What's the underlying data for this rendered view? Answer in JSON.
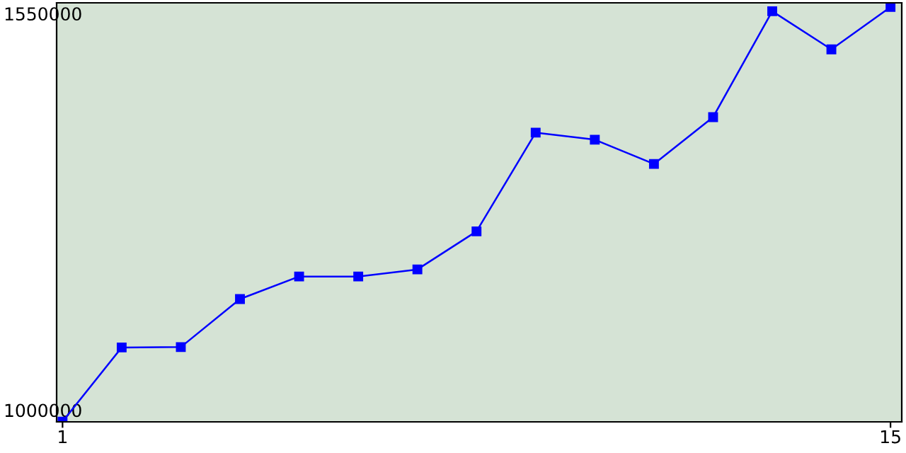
{
  "chart_data": {
    "type": "line",
    "x": [
      1,
      2,
      3,
      4,
      5,
      6,
      7,
      8,
      9,
      10,
      11,
      12,
      13,
      14,
      15
    ],
    "series": [
      {
        "color": "#0000ff",
        "values": [
          986700,
          1089500,
          1090000,
          1156600,
          1187900,
          1187900,
          1197700,
          1250500,
          1387500,
          1377700,
          1344000,
          1409000,
          1555800,
          1503000,
          1561700
        ]
      }
    ],
    "xlim": [
      0.9,
      15.19
    ],
    "xticks": [
      1,
      15
    ],
    "ylim": [
      986300,
      1567500
    ],
    "yticks": [
      1000000,
      1550000
    ],
    "marker": "square",
    "line_style": "solid",
    "grid": false,
    "legend": false
  }
}
